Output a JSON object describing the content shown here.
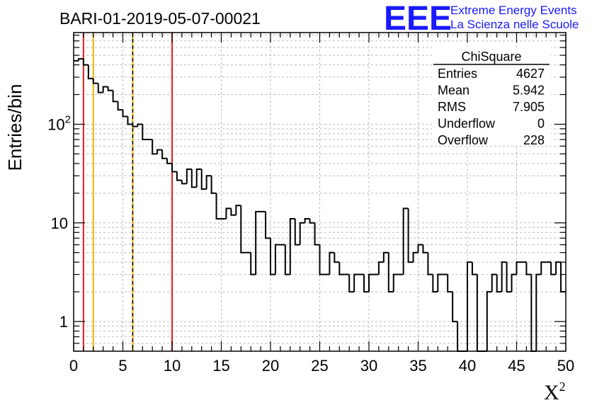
{
  "chart_data": {
    "type": "histogram",
    "title": "BARI-01-2019-05-07-00021",
    "xlabel": "X",
    "xlabel_sup": "2",
    "ylabel": "Entries/bin",
    "xlim": [
      0,
      50
    ],
    "ylim": [
      0.5,
      850
    ],
    "yscale": "log",
    "grid": true,
    "bin_width": 0.5,
    "x_ticks": [
      0,
      5,
      10,
      15,
      20,
      25,
      30,
      35,
      40,
      45,
      50
    ],
    "y_ticks": [
      {
        "value": 1,
        "label": "1"
      },
      {
        "value": 10,
        "label": "10"
      },
      {
        "value": 100,
        "label": "10",
        "sup": "2"
      }
    ],
    "values": [
      440,
      460,
      400,
      290,
      260,
      210,
      240,
      220,
      170,
      140,
      120,
      100,
      95,
      100,
      70,
      70,
      50,
      55,
      45,
      40,
      33,
      27,
      25,
      35,
      23,
      35,
      22,
      30,
      20,
      11,
      11,
      14,
      12,
      15,
      5,
      5,
      3,
      13,
      13,
      7,
      3,
      6,
      6,
      3,
      11,
      6,
      10,
      11,
      10,
      6,
      3,
      3,
      5,
      4,
      3,
      3,
      2,
      3,
      3,
      2,
      3,
      3,
      4,
      5,
      2,
      3,
      3,
      14,
      4,
      5,
      6,
      5,
      3,
      2,
      3,
      3,
      2,
      1,
      0,
      0,
      4,
      3,
      0,
      0,
      2,
      3,
      2,
      4,
      2,
      3,
      4,
      4,
      3,
      0,
      3,
      4,
      4,
      3,
      4,
      2
    ],
    "lines": [
      {
        "x": 1,
        "color": "#e8201c",
        "style": "solid"
      },
      {
        "x": 2,
        "color": "#f0b400",
        "style": "solid"
      },
      {
        "x": 6,
        "color": "#f0b400",
        "style": "solid"
      },
      {
        "x": 6,
        "color": "#000000",
        "style": "dashed"
      },
      {
        "x": 10,
        "color": "#e8201c",
        "style": "solid"
      }
    ],
    "stats": {
      "title": "ChiSquare",
      "rows": [
        {
          "label": "Entries",
          "value": "4627"
        },
        {
          "label": "Mean",
          "value": "5.942"
        },
        {
          "label": "RMS",
          "value": "7.905"
        },
        {
          "label": "Underflow",
          "value": "0"
        },
        {
          "label": "Overflow",
          "value": "228"
        }
      ]
    }
  },
  "logo": {
    "big": "EEE",
    "line1": "Extreme Energy Events",
    "line2": "La Scienza nelle Scuole",
    "color": "#1a1aff"
  }
}
